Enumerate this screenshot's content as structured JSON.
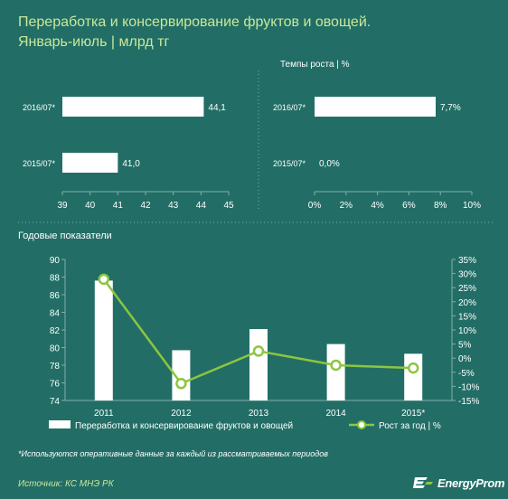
{
  "header": {
    "title": "Переработка и консервирование  фруктов и овощей.",
    "subtitle": "Январь-июль  | млрд тг"
  },
  "chart_data": [
    {
      "type": "bar",
      "orientation": "horizontal",
      "categories": [
        "2016/07*",
        "2015/07*"
      ],
      "values": [
        44.1,
        41.0
      ],
      "value_labels": [
        "44,1",
        "41,0"
      ],
      "xlim": [
        39,
        45
      ],
      "xticks": [
        "39",
        "40",
        "41",
        "42",
        "43",
        "44",
        "45"
      ],
      "title": ""
    },
    {
      "type": "bar",
      "orientation": "horizontal",
      "title": "Темпы роста  | %",
      "categories": [
        "2016/07*",
        "2015/07*"
      ],
      "values": [
        7.7,
        0.0
      ],
      "value_labels": [
        "7,7%",
        "0,0%"
      ],
      "xlim": [
        0,
        10
      ],
      "xticks": [
        "0%",
        "2%",
        "4%",
        "6%",
        "8%",
        "10%"
      ]
    },
    {
      "type": "bar",
      "title": "Годовые показатели",
      "categories": [
        "2011",
        "2012",
        "2013",
        "2014",
        "2015*"
      ],
      "series": [
        {
          "name": "Переработка и консервирование  фруктов и овощей",
          "type": "bar",
          "axis": "left",
          "values": [
            87.6,
            79.7,
            82.1,
            80.4,
            79.3
          ]
        },
        {
          "name": "Рост за год  | %",
          "type": "line",
          "axis": "right",
          "values": [
            28,
            -9,
            2.5,
            -2.5,
            -3.5
          ]
        }
      ],
      "ylim_left": [
        74,
        90
      ],
      "yticks_left": [
        "74",
        "76",
        "78",
        "80",
        "82",
        "84",
        "86",
        "88",
        "90"
      ],
      "ylim_right": [
        -15,
        35
      ],
      "yticks_right": [
        "-15%",
        "-10%",
        "-5%",
        "0%",
        "5%",
        "10%",
        "15%",
        "20%",
        "25%",
        "30%",
        "35%"
      ],
      "legend_position": "bottom"
    }
  ],
  "footnote": "*Используются оперативные данные за каждый из рассматриваемых периодов",
  "source": "Источник: КС МНЭ РК",
  "brand": "EnergyProm",
  "colors": {
    "background": "#226e66",
    "bar": "#ffffff",
    "line": "#8cc63f",
    "title": "#c9e89a",
    "grid": "#7fb0aa"
  }
}
